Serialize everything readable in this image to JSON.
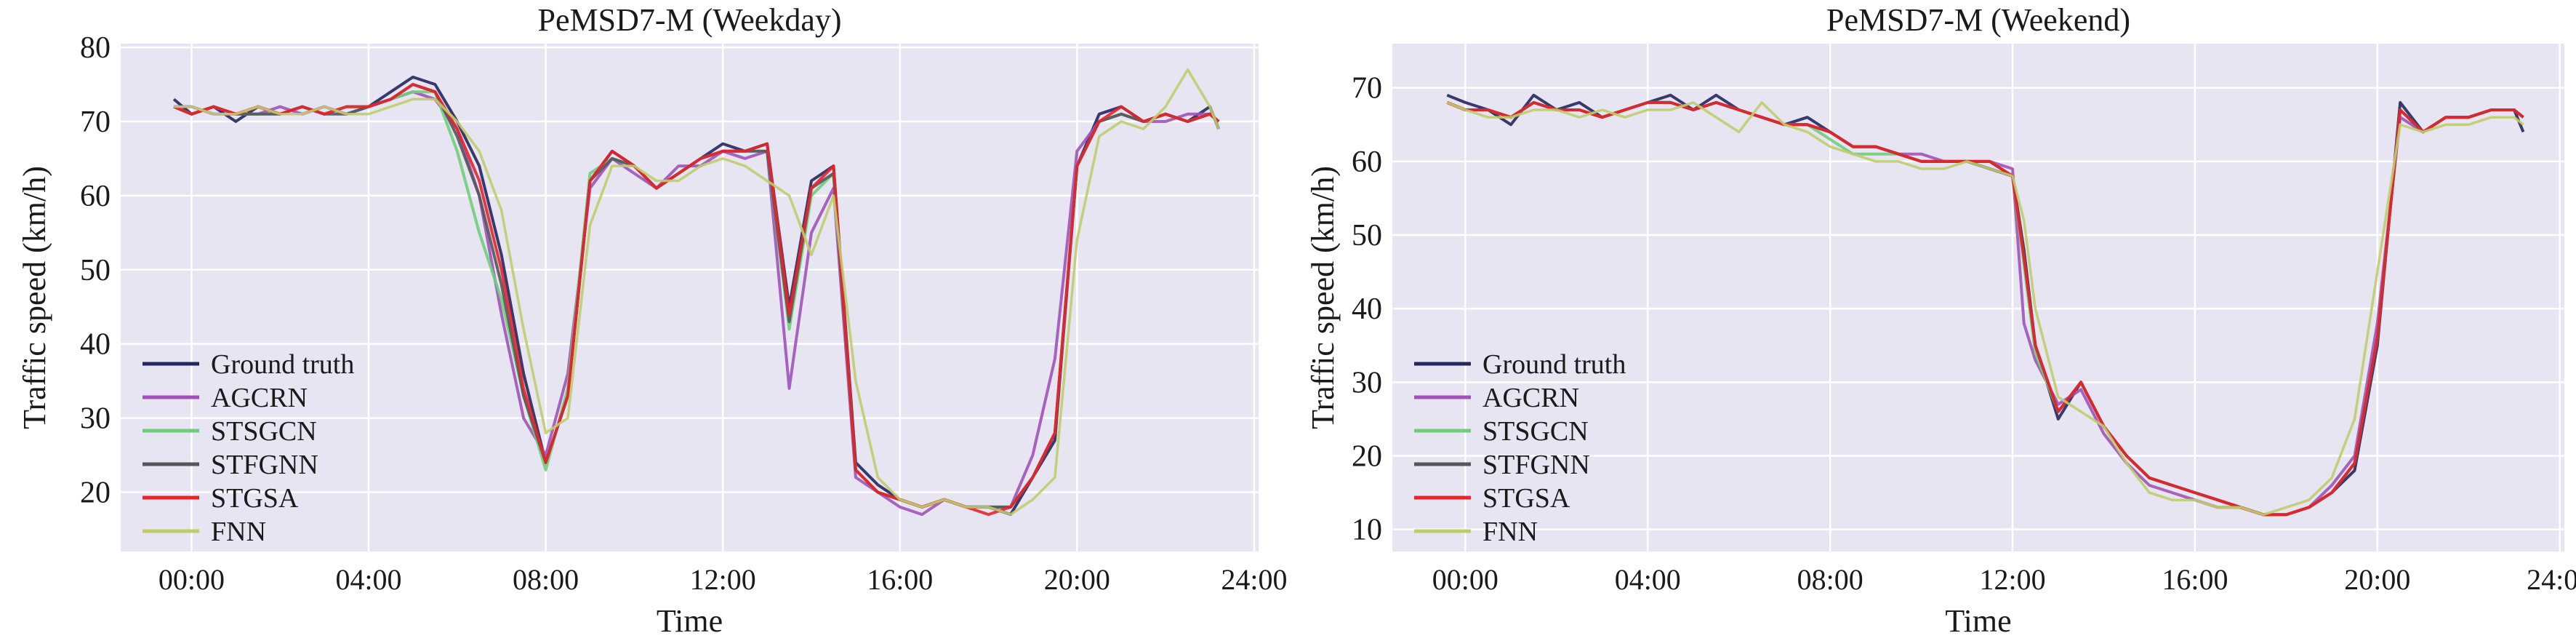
{
  "figure": {
    "x_tick_labels": [
      "00:00",
      "04:00",
      "08:00",
      "12:00",
      "16:00",
      "20:00",
      "24:00"
    ],
    "xlabel": "Time",
    "ylabel": "Traffic speed (km/h)"
  },
  "chart_data": [
    {
      "type": "line",
      "title": "PeMSD7-M (Weekday)",
      "xlabel": "Time",
      "ylabel": "Traffic speed (km/h)",
      "x_unit": "hours",
      "xlim": [
        -1.6,
        24.1
      ],
      "ylim": [
        12.0,
        80.5
      ],
      "yticks": [
        20,
        30,
        40,
        50,
        60,
        70,
        80
      ],
      "grid": true,
      "legend_position": "lower-left",
      "x": [
        -0.4,
        0.0,
        0.5,
        1.0,
        1.5,
        2.0,
        2.5,
        3.0,
        3.5,
        4.0,
        4.5,
        5.0,
        5.5,
        6.0,
        6.5,
        7.0,
        7.5,
        8.0,
        8.5,
        9.0,
        9.5,
        10.0,
        10.5,
        11.0,
        11.5,
        12.0,
        12.5,
        13.0,
        13.5,
        14.0,
        14.5,
        15.0,
        15.5,
        16.0,
        16.5,
        17.0,
        17.5,
        18.0,
        18.5,
        19.0,
        19.5,
        20.0,
        20.5,
        21.0,
        21.5,
        22.0,
        22.5,
        23.0,
        23.2
      ],
      "series": [
        {
          "name": "Ground truth",
          "color": "#25265e",
          "values": [
            73,
            71,
            72,
            70,
            72,
            71,
            72,
            71,
            72,
            72,
            74,
            76,
            75,
            70,
            64,
            52,
            36,
            24,
            33,
            62,
            66,
            64,
            61,
            63,
            65,
            67,
            66,
            67,
            45,
            62,
            64,
            24,
            21,
            19,
            18,
            19,
            18,
            18,
            17,
            22,
            27,
            64,
            71,
            72,
            70,
            71,
            70,
            72,
            69
          ]
        },
        {
          "name": "AGCRN",
          "color": "#a052b8",
          "values": [
            72,
            72,
            71,
            71,
            71,
            72,
            71,
            72,
            71,
            72,
            73,
            74,
            73,
            69,
            60,
            44,
            30,
            25,
            36,
            61,
            65,
            63,
            61,
            64,
            64,
            66,
            65,
            66,
            34,
            55,
            61,
            22,
            20,
            18,
            17,
            19,
            18,
            18,
            18,
            25,
            38,
            66,
            70,
            71,
            70,
            70,
            71,
            71,
            70
          ]
        },
        {
          "name": "STSGCN",
          "color": "#6fce7a",
          "values": [
            72,
            71,
            72,
            71,
            71,
            71,
            72,
            71,
            72,
            72,
            73,
            74,
            74,
            66,
            55,
            46,
            33,
            23,
            34,
            63,
            65,
            64,
            61,
            63,
            65,
            66,
            66,
            66,
            42,
            60,
            63,
            23,
            20,
            19,
            18,
            19,
            18,
            18,
            18,
            22,
            28,
            64,
            70,
            71,
            70,
            71,
            70,
            71,
            70
          ]
        },
        {
          "name": "STFGNN",
          "color": "#55555a",
          "values": [
            72,
            71,
            72,
            71,
            71,
            71,
            72,
            71,
            71,
            72,
            73,
            75,
            74,
            68,
            60,
            48,
            33,
            24,
            33,
            62,
            65,
            64,
            61,
            63,
            65,
            66,
            66,
            66,
            43,
            61,
            63,
            23,
            20,
            19,
            18,
            19,
            18,
            18,
            18,
            22,
            28,
            64,
            70,
            71,
            70,
            71,
            70,
            71,
            70
          ]
        },
        {
          "name": "STGSA",
          "color": "#e8242a",
          "values": [
            72,
            71,
            72,
            71,
            72,
            71,
            72,
            71,
            72,
            72,
            73,
            75,
            74,
            69,
            62,
            50,
            34,
            24,
            33,
            62,
            66,
            64,
            61,
            63,
            65,
            66,
            66,
            67,
            44,
            61,
            64,
            23,
            20,
            19,
            18,
            19,
            18,
            17,
            18,
            22,
            28,
            64,
            70,
            72,
            70,
            71,
            70,
            71,
            70
          ]
        },
        {
          "name": "FNN",
          "color": "#c0cc6c",
          "values": [
            72,
            72,
            71,
            71,
            72,
            71,
            71,
            72,
            71,
            71,
            72,
            73,
            73,
            70,
            66,
            58,
            42,
            28,
            30,
            56,
            64,
            64,
            62,
            62,
            64,
            65,
            64,
            62,
            60,
            52,
            60,
            35,
            22,
            19,
            18,
            19,
            18,
            18,
            17,
            19,
            22,
            54,
            68,
            70,
            69,
            72,
            77,
            72,
            69
          ]
        }
      ]
    },
    {
      "type": "line",
      "title": "PeMSD7-M (Weekend)",
      "xlabel": "Time",
      "ylabel": "Traffic speed (km/h)",
      "x_unit": "hours",
      "xlim": [
        -1.6,
        24.1
      ],
      "ylim": [
        7.0,
        76.0
      ],
      "yticks": [
        10,
        20,
        30,
        40,
        50,
        60,
        70
      ],
      "grid": true,
      "legend_position": "lower-left",
      "x": [
        -0.4,
        0.0,
        0.5,
        1.0,
        1.5,
        2.0,
        2.5,
        3.0,
        3.5,
        4.0,
        4.5,
        5.0,
        5.5,
        6.0,
        6.5,
        7.0,
        7.5,
        8.0,
        8.5,
        9.0,
        9.5,
        10.0,
        10.5,
        11.0,
        11.5,
        12.0,
        12.25,
        12.5,
        13.0,
        13.5,
        14.0,
        14.5,
        15.0,
        15.5,
        16.0,
        16.5,
        17.0,
        17.5,
        18.0,
        18.5,
        19.0,
        19.5,
        20.0,
        20.5,
        21.0,
        21.5,
        22.0,
        22.5,
        23.0,
        23.2
      ],
      "series": [
        {
          "name": "Ground truth",
          "color": "#25265e",
          "values": [
            69,
            68,
            67,
            65,
            69,
            67,
            68,
            66,
            67,
            68,
            69,
            67,
            69,
            67,
            66,
            65,
            66,
            64,
            62,
            62,
            61,
            60,
            60,
            60,
            59,
            58,
            48,
            35,
            25,
            30,
            24,
            20,
            17,
            16,
            15,
            14,
            13,
            12,
            12,
            13,
            15,
            18,
            35,
            68,
            64,
            66,
            66,
            67,
            67,
            64
          ]
        },
        {
          "name": "AGCRN",
          "color": "#a052b8",
          "values": [
            68,
            67,
            67,
            66,
            68,
            67,
            67,
            66,
            67,
            68,
            68,
            67,
            68,
            67,
            66,
            65,
            65,
            64,
            62,
            62,
            61,
            61,
            60,
            60,
            60,
            59,
            38,
            33,
            27,
            29,
            23,
            19,
            16,
            15,
            14,
            13,
            13,
            12,
            12,
            13,
            16,
            20,
            38,
            66,
            64,
            66,
            66,
            67,
            67,
            66
          ]
        },
        {
          "name": "STSGCN",
          "color": "#6fce7a",
          "values": [
            68,
            67,
            67,
            66,
            68,
            67,
            67,
            66,
            67,
            68,
            68,
            67,
            68,
            67,
            66,
            65,
            65,
            63,
            61,
            61,
            61,
            60,
            60,
            60,
            60,
            58,
            46,
            34,
            26,
            30,
            24,
            20,
            17,
            16,
            15,
            14,
            13,
            12,
            12,
            13,
            15,
            19,
            36,
            67,
            64,
            66,
            66,
            67,
            67,
            66
          ]
        },
        {
          "name": "STFGNN",
          "color": "#55555a",
          "values": [
            68,
            67,
            67,
            66,
            68,
            67,
            67,
            66,
            67,
            68,
            68,
            67,
            68,
            67,
            66,
            65,
            65,
            64,
            62,
            62,
            61,
            60,
            60,
            60,
            60,
            58,
            47,
            35,
            26,
            30,
            24,
            20,
            17,
            16,
            15,
            14,
            13,
            12,
            12,
            13,
            15,
            19,
            36,
            67,
            64,
            66,
            66,
            67,
            67,
            66
          ]
        },
        {
          "name": "STGSA",
          "color": "#e8242a",
          "values": [
            68,
            67,
            67,
            66,
            68,
            67,
            67,
            66,
            67,
            68,
            68,
            67,
            68,
            67,
            66,
            65,
            65,
            64,
            62,
            62,
            61,
            60,
            60,
            60,
            60,
            58,
            47,
            35,
            26,
            30,
            24,
            20,
            17,
            16,
            15,
            14,
            13,
            12,
            12,
            13,
            15,
            19,
            36,
            67,
            64,
            66,
            66,
            67,
            67,
            66
          ]
        },
        {
          "name": "FNN",
          "color": "#c0cc6c",
          "values": [
            68,
            67,
            66,
            66,
            67,
            67,
            66,
            67,
            66,
            67,
            67,
            68,
            66,
            64,
            68,
            65,
            64,
            62,
            61,
            60,
            60,
            59,
            59,
            60,
            59,
            58,
            52,
            40,
            28,
            26,
            24,
            19,
            15,
            14,
            14,
            13,
            13,
            12,
            13,
            14,
            17,
            25,
            45,
            65,
            64,
            65,
            65,
            66,
            66,
            65
          ]
        }
      ]
    }
  ]
}
